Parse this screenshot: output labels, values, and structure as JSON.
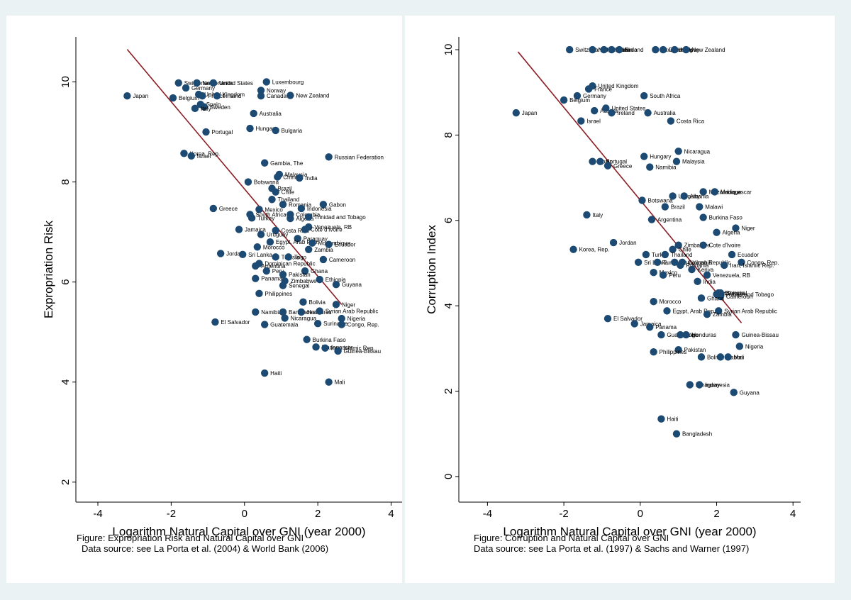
{
  "colors": {
    "point": "#1c4a72",
    "fit_line": "#8b1c24",
    "axis": "#000000",
    "background": "#eaf2f3",
    "plot_bg": "#ffffff"
  },
  "captions": {
    "left": {
      "line1": "Figure: Expropriation Risk and Natural Capital over GNI",
      "line2": "Data source: see La Porta et al. (2004) & World Bank (2006)"
    },
    "right": {
      "line1": "Figure: Corruption and Natural Capital over GNI",
      "line2": "Data source: see La Porta et al. (1997) & Sachs and Warner (1997)"
    }
  },
  "chart_data": [
    {
      "type": "scatter",
      "title": "",
      "xlabel": "Logarithm Natural Capital over GNI (year 2000)",
      "ylabel": "Expropriation Risk",
      "xlim": [
        -4.6,
        4.3
      ],
      "ylim": [
        1.6,
        10.9
      ],
      "xticks": [
        -4,
        -2,
        0,
        2,
        4
      ],
      "yticks": [
        2,
        4,
        6,
        8,
        10
      ],
      "fit_line": {
        "x": [
          -3.2,
          2.65
        ],
        "y": [
          10.65,
          5.55
        ]
      },
      "points": [
        {
          "label": "Japan",
          "x": -3.2,
          "y": 9.72
        },
        {
          "label": "Belgium",
          "x": -1.95,
          "y": 9.68
        },
        {
          "label": "Switzerland",
          "x": -1.8,
          "y": 9.98
        },
        {
          "label": "Germany",
          "x": -1.6,
          "y": 9.88
        },
        {
          "label": "Netherlands",
          "x": -1.3,
          "y": 9.98
        },
        {
          "label": "United States",
          "x": -0.85,
          "y": 9.98
        },
        {
          "label": "United Kingdom",
          "x": -1.25,
          "y": 9.75
        },
        {
          "label": "France",
          "x": -1.15,
          "y": 9.72
        },
        {
          "label": "Finland",
          "x": -0.75,
          "y": 9.72
        },
        {
          "label": "Spain",
          "x": -1.2,
          "y": 9.55
        },
        {
          "label": "Sweden",
          "x": -1.1,
          "y": 9.5
        },
        {
          "label": "Italy",
          "x": -1.35,
          "y": 9.47
        },
        {
          "label": "Luxembourg",
          "x": 0.6,
          "y": 10.0
        },
        {
          "label": "Norway",
          "x": 0.45,
          "y": 9.83
        },
        {
          "label": "Canada",
          "x": 0.45,
          "y": 9.72
        },
        {
          "label": "New Zealand",
          "x": 1.25,
          "y": 9.73
        },
        {
          "label": "Australia",
          "x": 0.25,
          "y": 9.37
        },
        {
          "label": "Hungary",
          "x": 0.15,
          "y": 9.07
        },
        {
          "label": "Bulgaria",
          "x": 0.85,
          "y": 9.03
        },
        {
          "label": "Portugal",
          "x": -1.05,
          "y": 9.0
        },
        {
          "label": "Korea, Rep.",
          "x": -1.65,
          "y": 8.57
        },
        {
          "label": "Israel",
          "x": -1.45,
          "y": 8.52
        },
        {
          "label": "Russian Federation",
          "x": 2.3,
          "y": 8.5
        },
        {
          "label": "Gambia, The",
          "x": 0.55,
          "y": 8.38
        },
        {
          "label": "Malaysia",
          "x": 0.95,
          "y": 8.15
        },
        {
          "label": "China",
          "x": 0.9,
          "y": 8.1
        },
        {
          "label": "India",
          "x": 1.5,
          "y": 8.08
        },
        {
          "label": "Botswana",
          "x": 0.1,
          "y": 8.0
        },
        {
          "label": "Brazil",
          "x": 0.75,
          "y": 7.87
        },
        {
          "label": "Chile",
          "x": 0.85,
          "y": 7.8
        },
        {
          "label": "Thailand",
          "x": 0.75,
          "y": 7.65
        },
        {
          "label": "Romania",
          "x": 1.05,
          "y": 7.55
        },
        {
          "label": "Gabon",
          "x": 2.15,
          "y": 7.55
        },
        {
          "label": "Indonesia",
          "x": 1.55,
          "y": 7.47
        },
        {
          "label": "Greece",
          "x": -0.85,
          "y": 7.47
        },
        {
          "label": "Mexico",
          "x": 0.4,
          "y": 7.45
        },
        {
          "label": "South Africa",
          "x": 0.15,
          "y": 7.35
        },
        {
          "label": "Colombia",
          "x": 1.25,
          "y": 7.35
        },
        {
          "label": "Turkey",
          "x": 0.2,
          "y": 7.28
        },
        {
          "label": "Algeria",
          "x": 1.25,
          "y": 7.27
        },
        {
          "label": "Trinidad and Tobago",
          "x": 1.75,
          "y": 7.3
        },
        {
          "label": "Venezuela, RB",
          "x": 1.75,
          "y": 7.1
        },
        {
          "label": "Jamaica",
          "x": -0.15,
          "y": 7.05
        },
        {
          "label": "Costa Rica",
          "x": 0.85,
          "y": 7.03
        },
        {
          "label": "Cote d'Ivoire",
          "x": 1.65,
          "y": 7.05
        },
        {
          "label": "Uruguay",
          "x": 0.45,
          "y": 6.95
        },
        {
          "label": "Paraguay",
          "x": 1.45,
          "y": 6.87
        },
        {
          "label": "Egypt, Arab Rep.",
          "x": 0.7,
          "y": 6.8
        },
        {
          "label": "Mozambique",
          "x": 1.85,
          "y": 6.78
        },
        {
          "label": "Ecuador",
          "x": 2.3,
          "y": 6.75
        },
        {
          "label": "Morocco",
          "x": 0.35,
          "y": 6.7
        },
        {
          "label": "Zambia",
          "x": 1.75,
          "y": 6.65
        },
        {
          "label": "Jordan",
          "x": -0.65,
          "y": 6.57
        },
        {
          "label": "Sri Lanka",
          "x": -0.05,
          "y": 6.55
        },
        {
          "label": "Tunisia",
          "x": 0.85,
          "y": 6.5
        },
        {
          "label": "Togo",
          "x": 1.2,
          "y": 6.5
        },
        {
          "label": "Cameroon",
          "x": 2.15,
          "y": 6.45
        },
        {
          "label": "Dominican Republic",
          "x": 0.4,
          "y": 6.37
        },
        {
          "label": "Argentina",
          "x": 0.3,
          "y": 6.32
        },
        {
          "label": "Peru",
          "x": 0.6,
          "y": 6.22
        },
        {
          "label": "Ghana",
          "x": 1.65,
          "y": 6.22
        },
        {
          "label": "Pakistan",
          "x": 1.05,
          "y": 6.15
        },
        {
          "label": "Panama",
          "x": 0.3,
          "y": 6.07
        },
        {
          "label": "Zimbabwe",
          "x": 1.1,
          "y": 6.02
        },
        {
          "label": "Ethiopia",
          "x": 2.05,
          "y": 6.05
        },
        {
          "label": "Guyana",
          "x": 2.5,
          "y": 5.95
        },
        {
          "label": "Senegal",
          "x": 1.05,
          "y": 5.93
        },
        {
          "label": "Philippines",
          "x": 0.4,
          "y": 5.77
        },
        {
          "label": "Bolivia",
          "x": 1.6,
          "y": 5.6
        },
        {
          "label": "Niger",
          "x": 2.5,
          "y": 5.55
        },
        {
          "label": "Namibia",
          "x": 0.3,
          "y": 5.4
        },
        {
          "label": "Bangladesh",
          "x": 1.05,
          "y": 5.4
        },
        {
          "label": "Honduras",
          "x": 1.55,
          "y": 5.4
        },
        {
          "label": "Syrian Arab Republic",
          "x": 2.05,
          "y": 5.42
        },
        {
          "label": "Nicaragua",
          "x": 1.1,
          "y": 5.28
        },
        {
          "label": "Nigeria",
          "x": 2.65,
          "y": 5.27
        },
        {
          "label": "El Salvador",
          "x": -0.8,
          "y": 5.2
        },
        {
          "label": "Guatemala",
          "x": 0.55,
          "y": 5.15
        },
        {
          "label": "Suriname",
          "x": 2.0,
          "y": 5.17
        },
        {
          "label": "Congo, Rep.",
          "x": 2.65,
          "y": 5.15
        },
        {
          "label": "Burkina Faso",
          "x": 1.7,
          "y": 4.85
        },
        {
          "label": "Madagascar",
          "x": 1.95,
          "y": 4.7
        },
        {
          "label": "Iran, Islamic Rep.",
          "x": 2.2,
          "y": 4.68
        },
        {
          "label": "Guinea-Bissau",
          "x": 2.55,
          "y": 4.62
        },
        {
          "label": "Haiti",
          "x": 0.55,
          "y": 4.18
        },
        {
          "label": "Mali",
          "x": 2.3,
          "y": 4.0
        }
      ]
    },
    {
      "type": "scatter",
      "title": "",
      "xlabel": "Logarithm Natural Capital over GNI (year 2000)",
      "ylabel": "Corruption Index",
      "xlim": [
        -4.75,
        4.2
      ],
      "ylim": [
        -0.6,
        10.3
      ],
      "xticks": [
        -4,
        -2,
        0,
        2,
        4
      ],
      "yticks": [
        0,
        2,
        4,
        6,
        8,
        10
      ],
      "fit_line": {
        "x": [
          -3.2,
          2.65
        ],
        "y": [
          9.95,
          3.6
        ]
      },
      "points": [
        {
          "label": "Switzerland",
          "x": -1.85,
          "y": 10.0
        },
        {
          "label": "Netherlands",
          "x": -1.25,
          "y": 10.0
        },
        {
          "label": "Sweden",
          "x": -0.95,
          "y": 10.0
        },
        {
          "label": "Canada",
          "x": -0.75,
          "y": 10.0
        },
        {
          "label": "Finland",
          "x": -0.55,
          "y": 10.0
        },
        {
          "label": "Luxembourg",
          "x": 0.4,
          "y": 10.0
        },
        {
          "label": "Denmark",
          "x": 0.6,
          "y": 10.0
        },
        {
          "label": "Norway",
          "x": 0.9,
          "y": 10.0
        },
        {
          "label": "New Zealand",
          "x": 1.2,
          "y": 10.0
        },
        {
          "label": "United Kingdom",
          "x": -1.25,
          "y": 9.15
        },
        {
          "label": "France",
          "x": -1.35,
          "y": 9.08
        },
        {
          "label": "Germany",
          "x": -1.65,
          "y": 8.92
        },
        {
          "label": "Belgium",
          "x": -2.0,
          "y": 8.82
        },
        {
          "label": "South Africa",
          "x": 0.1,
          "y": 8.92
        },
        {
          "label": "Japan",
          "x": -3.25,
          "y": 8.52
        },
        {
          "label": "Austria",
          "x": -1.2,
          "y": 8.57
        },
        {
          "label": "United States",
          "x": -0.9,
          "y": 8.63
        },
        {
          "label": "Ireland",
          "x": -0.75,
          "y": 8.52
        },
        {
          "label": "Australia",
          "x": 0.2,
          "y": 8.52
        },
        {
          "label": "Israel",
          "x": -1.55,
          "y": 8.33
        },
        {
          "label": "Costa Rica",
          "x": 0.8,
          "y": 8.33
        },
        {
          "label": "Nicaragua",
          "x": 1.0,
          "y": 7.62
        },
        {
          "label": "Hungary",
          "x": 0.1,
          "y": 7.5
        },
        {
          "label": "Malaysia",
          "x": 0.95,
          "y": 7.38
        },
        {
          "label": "Spain",
          "x": -1.25,
          "y": 7.38
        },
        {
          "label": "Portugal",
          "x": -1.05,
          "y": 7.38
        },
        {
          "label": "Greece",
          "x": -0.85,
          "y": 7.28
        },
        {
          "label": "Namibia",
          "x": 0.25,
          "y": 7.25
        },
        {
          "label": "Botswana",
          "x": 0.05,
          "y": 6.47
        },
        {
          "label": "Mozambique",
          "x": 1.65,
          "y": 6.67
        },
        {
          "label": "Madagascar",
          "x": 1.95,
          "y": 6.67
        },
        {
          "label": "Uruguay",
          "x": 0.85,
          "y": 6.57
        },
        {
          "label": "Albania",
          "x": 1.15,
          "y": 6.57
        },
        {
          "label": "Brazil",
          "x": 0.65,
          "y": 6.32
        },
        {
          "label": "Malawi",
          "x": 1.55,
          "y": 6.32
        },
        {
          "label": "Italy",
          "x": -1.4,
          "y": 6.13
        },
        {
          "label": "Burkina Faso",
          "x": 1.65,
          "y": 6.07
        },
        {
          "label": "Argentina",
          "x": 0.3,
          "y": 6.02
        },
        {
          "label": "Niger",
          "x": 2.5,
          "y": 5.82
        },
        {
          "label": "Algeria",
          "x": 2.0,
          "y": 5.72
        },
        {
          "label": "Jordan",
          "x": -0.7,
          "y": 5.48
        },
        {
          "label": "Zimbabwe",
          "x": 1.0,
          "y": 5.42
        },
        {
          "label": "Cote d'Ivoire",
          "x": 1.65,
          "y": 5.42
        },
        {
          "label": "Chile",
          "x": 0.85,
          "y": 5.32
        },
        {
          "label": "Korea, Rep.",
          "x": -1.75,
          "y": 5.32
        },
        {
          "label": "Turkey",
          "x": 0.15,
          "y": 5.2
        },
        {
          "label": "Thailand",
          "x": 0.65,
          "y": 5.2
        },
        {
          "label": "Ecuador",
          "x": 2.4,
          "y": 5.2
        },
        {
          "label": "Sri Lanka",
          "x": -0.05,
          "y": 5.02
        },
        {
          "label": "Tunisia",
          "x": 0.45,
          "y": 5.02
        },
        {
          "label": "Dominican Republic",
          "x": 0.9,
          "y": 5.02
        },
        {
          "label": "Colombia",
          "x": 1.1,
          "y": 5.02
        },
        {
          "label": "Romania",
          "x": 1.05,
          "y": 4.95
        },
        {
          "label": "Congo, Rep.",
          "x": 2.65,
          "y": 5.02
        },
        {
          "label": "Iran, Islamic Rep.",
          "x": 2.2,
          "y": 4.95
        },
        {
          "label": "Kenya",
          "x": 1.35,
          "y": 4.85
        },
        {
          "label": "Mexico",
          "x": 0.35,
          "y": 4.78
        },
        {
          "label": "Peru",
          "x": 0.6,
          "y": 4.72
        },
        {
          "label": "Venezuela, RB",
          "x": 1.75,
          "y": 4.72
        },
        {
          "label": "India",
          "x": 1.5,
          "y": 4.57
        },
        {
          "label": "Trinidad and Tobago",
          "x": 2.0,
          "y": 4.27
        },
        {
          "label": "Ethiopia",
          "x": 2.05,
          "y": 4.3
        },
        {
          "label": "Senegal",
          "x": 2.1,
          "y": 4.3
        },
        {
          "label": "Cameroon",
          "x": 2.1,
          "y": 4.22
        },
        {
          "label": "Ghana",
          "x": 1.6,
          "y": 4.18
        },
        {
          "label": "Morocco",
          "x": 0.35,
          "y": 4.1
        },
        {
          "label": "Egypt, Arab Rep.",
          "x": 0.7,
          "y": 3.88
        },
        {
          "label": "Syrian Arab Republic",
          "x": 2.05,
          "y": 3.88
        },
        {
          "label": "Zambia",
          "x": 1.75,
          "y": 3.8
        },
        {
          "label": "El Salvador",
          "x": -0.85,
          "y": 3.7
        },
        {
          "label": "Jamaica",
          "x": -0.15,
          "y": 3.58
        },
        {
          "label": "Panama",
          "x": 0.25,
          "y": 3.5
        },
        {
          "label": "Guatemala",
          "x": 0.55,
          "y": 3.32
        },
        {
          "label": "Togo",
          "x": 1.05,
          "y": 3.32
        },
        {
          "label": "Honduras",
          "x": 1.2,
          "y": 3.32
        },
        {
          "label": "Guinea-Bissau",
          "x": 2.5,
          "y": 3.32
        },
        {
          "label": "Nigeria",
          "x": 2.6,
          "y": 3.05
        },
        {
          "label": "Pakistan",
          "x": 1.0,
          "y": 2.97
        },
        {
          "label": "Philippines",
          "x": 0.35,
          "y": 2.92
        },
        {
          "label": "Bolivia",
          "x": 1.6,
          "y": 2.8
        },
        {
          "label": "Gabon",
          "x": 2.1,
          "y": 2.8
        },
        {
          "label": "Mali",
          "x": 2.3,
          "y": 2.8
        },
        {
          "label": "Paraguay",
          "x": 1.3,
          "y": 2.15
        },
        {
          "label": "Indonesia",
          "x": 1.55,
          "y": 2.15
        },
        {
          "label": "Guyana",
          "x": 2.45,
          "y": 1.97
        },
        {
          "label": "Haiti",
          "x": 0.55,
          "y": 1.35
        },
        {
          "label": "Bangladesh",
          "x": 0.95,
          "y": 1.0
        }
      ]
    }
  ]
}
